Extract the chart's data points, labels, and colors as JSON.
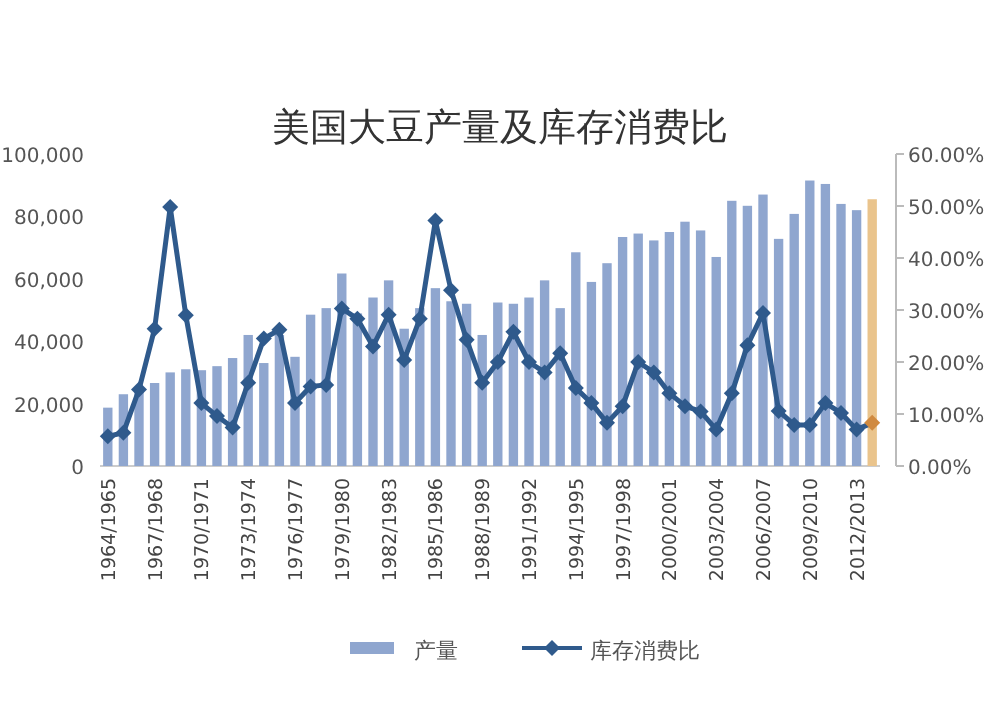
{
  "chart_data": {
    "type": "bar",
    "title": "美国大豆产量及库存消费比",
    "categories": [
      "1964/1965",
      null,
      null,
      "1967/1968",
      null,
      null,
      "1970/1971",
      null,
      null,
      "1973/1974",
      null,
      null,
      "1976/1977",
      null,
      null,
      "1979/1980",
      null,
      null,
      "1982/1983",
      null,
      null,
      "1985/1986",
      null,
      null,
      "1988/1989",
      null,
      null,
      "1991/1992",
      null,
      null,
      "1994/1995",
      null,
      null,
      "1997/1998",
      null,
      null,
      "2000/2001",
      null,
      null,
      "2003/2004",
      null,
      null,
      "2006/2007",
      null,
      null,
      "2009/2010",
      null,
      null,
      "2012/2013",
      null
    ],
    "series": [
      {
        "name": "产量",
        "color": "#8fa6cf",
        "colors": [
          "#8fa6cf",
          "#8fa6cf",
          "#8fa6cf",
          "#8fa6cf",
          "#8fa6cf",
          "#8fa6cf",
          "#8fa6cf",
          "#8fa6cf",
          "#8fa6cf",
          "#8fa6cf",
          "#8fa6cf",
          "#8fa6cf",
          "#8fa6cf",
          "#8fa6cf",
          "#8fa6cf",
          "#8fa6cf",
          "#8fa6cf",
          "#8fa6cf",
          "#8fa6cf",
          "#8fa6cf",
          "#8fa6cf",
          "#8fa6cf",
          "#8fa6cf",
          "#8fa6cf",
          "#8fa6cf",
          "#8fa6cf",
          "#8fa6cf",
          "#8fa6cf",
          "#8fa6cf",
          "#8fa6cf",
          "#8fa6cf",
          "#8fa6cf",
          "#8fa6cf",
          "#8fa6cf",
          "#8fa6cf",
          "#8fa6cf",
          "#8fa6cf",
          "#8fa6cf",
          "#8fa6cf",
          "#8fa6cf",
          "#8fa6cf",
          "#8fa6cf",
          "#8fa6cf",
          "#8fa6cf",
          "#8fa6cf",
          "#8fa6cf",
          "#8fa6cf",
          "#8fa6cf",
          "#8fa6cf",
          "#eac48c"
        ],
        "values": [
          18700,
          23000,
          25000,
          26600,
          30000,
          31000,
          30700,
          32000,
          34600,
          42000,
          33000,
          42000,
          35000,
          48500,
          50600,
          61700,
          48900,
          54000,
          59500,
          44000,
          50600,
          57000,
          52800,
          52000,
          42000,
          52400,
          52000,
          54000,
          59500,
          50600,
          68500,
          59000,
          65000,
          73400,
          74500,
          72300,
          75000,
          78300,
          75500,
          67000,
          85000,
          83400,
          87000,
          72800,
          80800,
          91500,
          90400,
          84000,
          82000,
          85500
        ]
      },
      {
        "name": "库存消费比",
        "type": "line",
        "axis": "y2",
        "color": "#2f5a8c",
        "colors": [
          "#2f5a8c",
          "#2f5a8c",
          "#2f5a8c",
          "#2f5a8c",
          "#2f5a8c",
          "#2f5a8c",
          "#2f5a8c",
          "#2f5a8c",
          "#2f5a8c",
          "#2f5a8c",
          "#2f5a8c",
          "#2f5a8c",
          "#2f5a8c",
          "#2f5a8c",
          "#2f5a8c",
          "#2f5a8c",
          "#2f5a8c",
          "#2f5a8c",
          "#2f5a8c",
          "#2f5a8c",
          "#2f5a8c",
          "#2f5a8c",
          "#2f5a8c",
          "#2f5a8c",
          "#2f5a8c",
          "#2f5a8c",
          "#2f5a8c",
          "#2f5a8c",
          "#2f5a8c",
          "#2f5a8c",
          "#2f5a8c",
          "#2f5a8c",
          "#2f5a8c",
          "#2f5a8c",
          "#2f5a8c",
          "#2f5a8c",
          "#2f5a8c",
          "#2f5a8c",
          "#2f5a8c",
          "#2f5a8c",
          "#2f5a8c",
          "#2f5a8c",
          "#2f5a8c",
          "#2f5a8c",
          "#2f5a8c",
          "#2f5a8c",
          "#2f5a8c",
          "#2f5a8c",
          "#2f5a8c",
          "#d08a40"
        ],
        "values": [
          5.7,
          6.4,
          14.7,
          26.4,
          49.8,
          29,
          12.1,
          9.6,
          7.4,
          16,
          24.5,
          26.2,
          12.1,
          15.3,
          15.6,
          30.3,
          28.3,
          23,
          29.1,
          20.4,
          28.3,
          47.2,
          33.8,
          24.3,
          16,
          20,
          25.8,
          20,
          18,
          21.7,
          15,
          12.1,
          8.3,
          11.5,
          20,
          18,
          14,
          11.5,
          10.5,
          7,
          14,
          23.2,
          29.4,
          10.6,
          7.9,
          7.9,
          12.1,
          10.2,
          7,
          8.3
        ]
      }
    ],
    "ylim": [
      0,
      100000
    ],
    "yticks": [
      {
        "value": 0,
        "label": "0"
      },
      {
        "value": 20000,
        "label": "20,000"
      },
      {
        "value": 40000,
        "label": "40,000"
      },
      {
        "value": 60000,
        "label": "60,000"
      },
      {
        "value": 80000,
        "label": "80,000"
      },
      {
        "value": 100000,
        "label": "100,000"
      }
    ],
    "y2lim": [
      0,
      60
    ],
    "y2ticks": [
      {
        "value": 0,
        "label": "0.00%"
      },
      {
        "value": 10,
        "label": "10.00%"
      },
      {
        "value": 20,
        "label": "20.00%"
      },
      {
        "value": 30,
        "label": "30.00%"
      },
      {
        "value": 40,
        "label": "40.00%"
      },
      {
        "value": 50,
        "label": "50.00%"
      },
      {
        "value": 60,
        "label": "60.00%"
      }
    ],
    "marker": "diamond",
    "legend": "bottom",
    "grid": false
  }
}
